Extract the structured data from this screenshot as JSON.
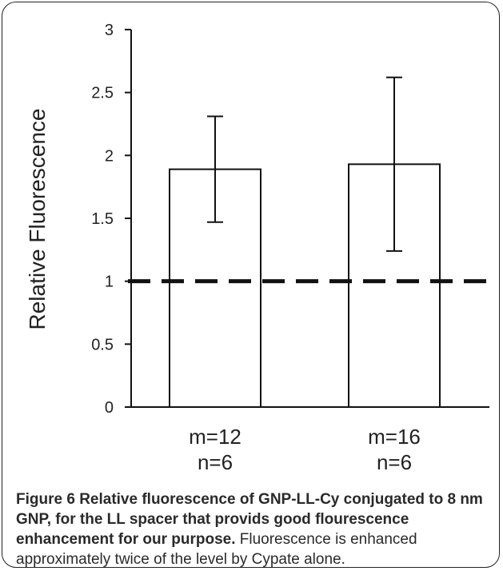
{
  "chart_data": {
    "type": "bar",
    "ylabel": "Relative Fluorescence",
    "ylim": [
      0,
      3
    ],
    "yticks": [
      0,
      0.5,
      1,
      1.5,
      2,
      2.5,
      3
    ],
    "ytick_labels": [
      "0",
      "0.5",
      "1",
      "1.5",
      "2",
      "2.5",
      "3"
    ],
    "categories": [
      {
        "line1": "m=12",
        "line2": "n=6"
      },
      {
        "line1": "m=16",
        "line2": "n=6"
      }
    ],
    "values": [
      1.89,
      1.93
    ],
    "error_low": [
      1.47,
      1.24
    ],
    "error_high": [
      2.31,
      2.62
    ],
    "reference_line": 1,
    "reference_style": "dashed",
    "grid": false
  },
  "caption": {
    "label": "Figure 6",
    "title": "Relative fluorescence of GNP-LL-Cy conjugated to 8 nm GNP, for the LL spacer that provids good flourescence enhancement for our purpose.",
    "body": "Fluorescence is enhanced approximately twice of the level by Cypate alone."
  },
  "colors": {
    "bar_fill": "#ffffff",
    "stroke": "#111111",
    "caption_text": "#2a2a2a"
  }
}
